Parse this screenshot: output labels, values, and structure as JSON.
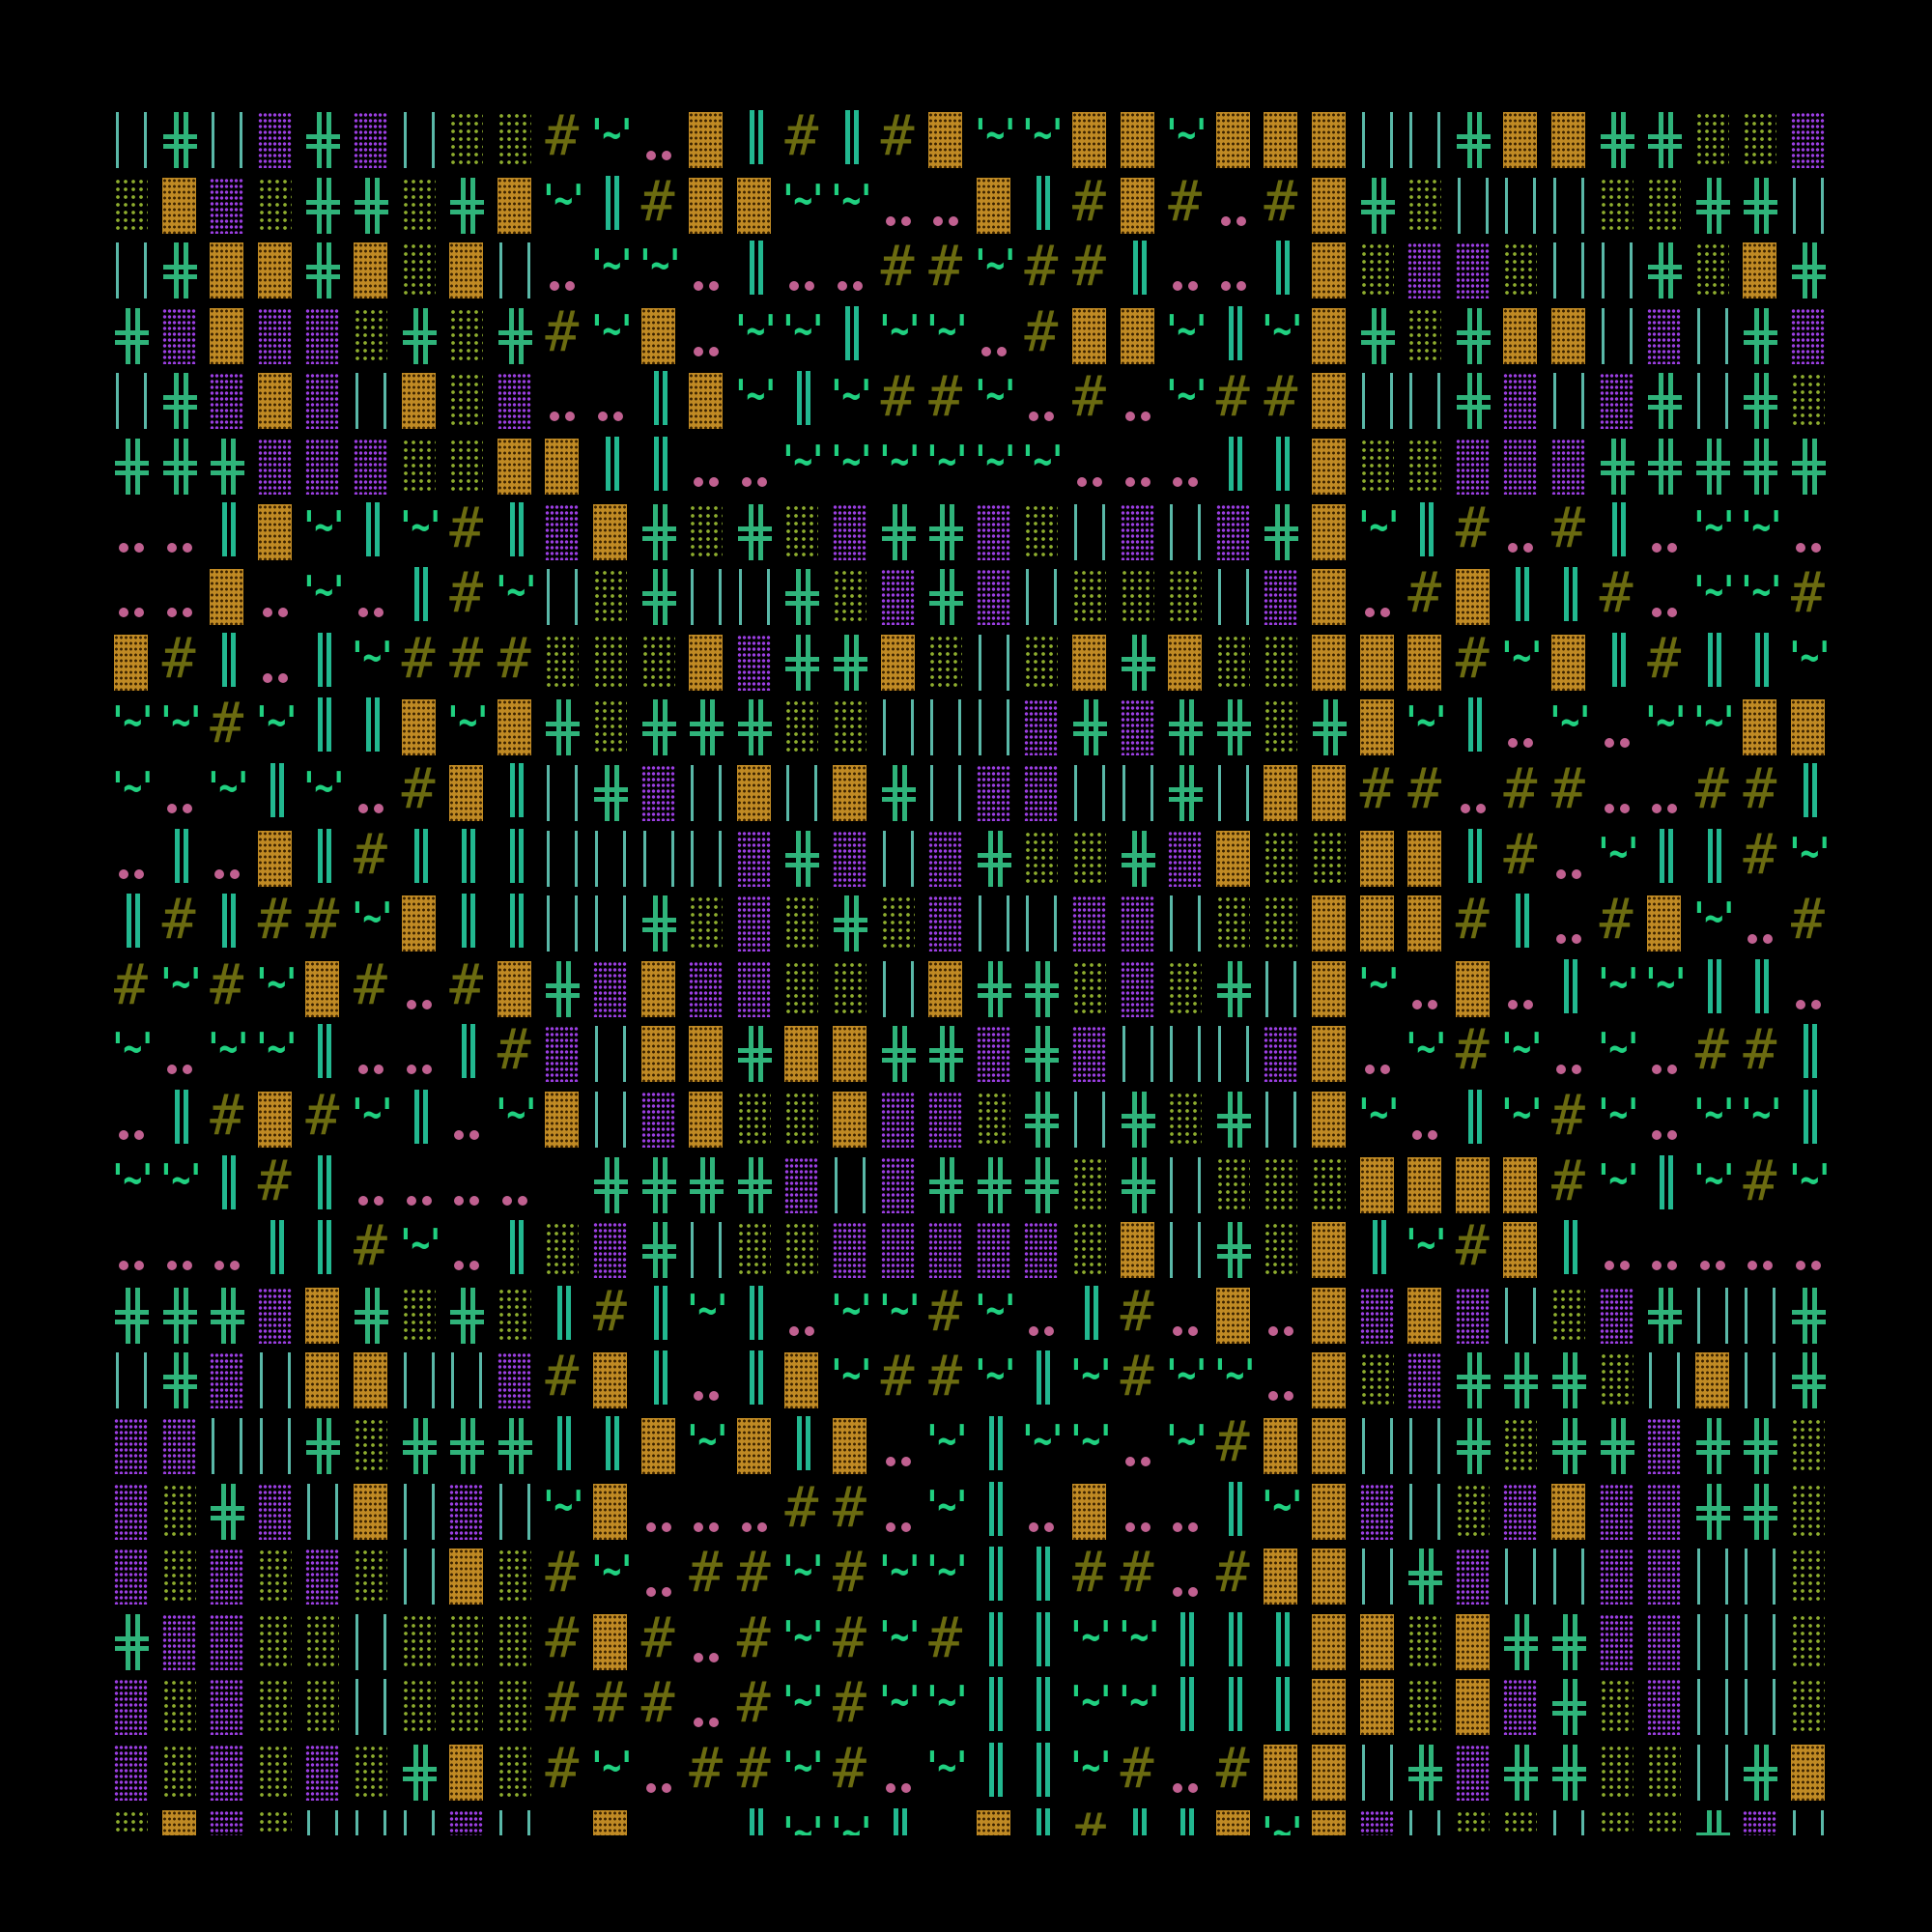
{
  "glyphs": {
    "H": "#",
    "W": "'~'",
    "dot": "..",
    "L": "| |",
    "D": "||",
    "X": "╬"
  },
  "colors": {
    "orange_block": "#c08a24",
    "purple_block": "#9a3ee0",
    "olive_dots": "#8fae2e",
    "cross_green": "#2fb37a",
    "bar_teal": "#5ab8a8",
    "hash_olive": "#6b6b10",
    "tilde_green": "#20d080",
    "dot_pink": "#c06090",
    "background": "#000000"
  },
  "grid": [
    "LXLPXPLYYHW.ODHDHOWWOOWOOOLLXOOXXYYP",
    "YOPYXXYXOWDHOOWW..ODHOH.HOXYLLLYYXXL",
    "LXOOXOYOL.WW.D..HHWHHD..DOYPPYLLXYOX",
    "XPOPPYXYXHWO.WWDWW.HOOWDWOXYXOOLPLXP",
    "LXPOPLOYP..DOWDWHHW.H.WHHOLLXPLPXLXY",
    "XXXPPPYYOODD..WWWWWW...DDOYYPPPXXXXX",
    "..DOWDWHDPOXYXYPXXPYLPLPXOWDH.HD.WW.",
    "..O.W.DHWLYXLLXYPXPLYYYLPO.HODDH.WWH",
    "OHD.DWHHHYYYOPXXOYLYOXOYYOOOHWODHDDW",
    "WWHWDDOWOXYXXXYYLLLPXPXXYXOWD.W.WWOO",
    "W.WDW.HODLXPLOLOXLPPLLXLOOHH.HH..HHD",
    ".D.ODHDDDLLLLPXPLPXYYXPOYYOODH.WDDHW",
    "DHDHHWODDLLXYPYXYPLLPPLYYOOOHD.HOW.H",
    "HWHWOH.HOXPOPPYYLOXXYPYXLOW.O.DWWDD.",
    "W.WWD..DHPLOOXOOXXPXPLLLPO.WHW.W.HHD",
    ".DHOHWD.WOLPOYYOPPYXLXYXLOW.DWHW.WWD",
    "WWDHD...._XXXXPLPXXXYXLYYYOOOOHWDWHW",
    "...DDHW.DYPXLYYPPPPPYOLXYODWHOD.....",
    "XXXPOXYXYDHDWD.WWHW.DH.O.OPOPLYPXLLX",
    "LXPLOOLLPHOD.DOWHHWDWHWW.OYPXXXYLOLX",
    "PPLLXYXXXDDOWODO.WDWW.WHOOLLXYXXPXXY",
    "PYXPLOLPLWO...HH.WD.O..DWOPLYPOPPXXY",
    "PYPYPYLOYHW.HHWHWWDDHH.HOOLXPLLPPLLY",
    "XPPYYLYYYHOH.HWHWHDDWWDDDOOYOXXPPLLY",
    "PYPYYLYYYHHH.HWHWWDDWWDDDOOYOPXYPLLY",
    "PYPYPYXOYHW.HHWH.WDDWH.HOOLXPXXYYLXO",
    "YOPYLLLPL_O__DWWD_ODHDDOWOPLYYLYYXPL"
  ]
}
